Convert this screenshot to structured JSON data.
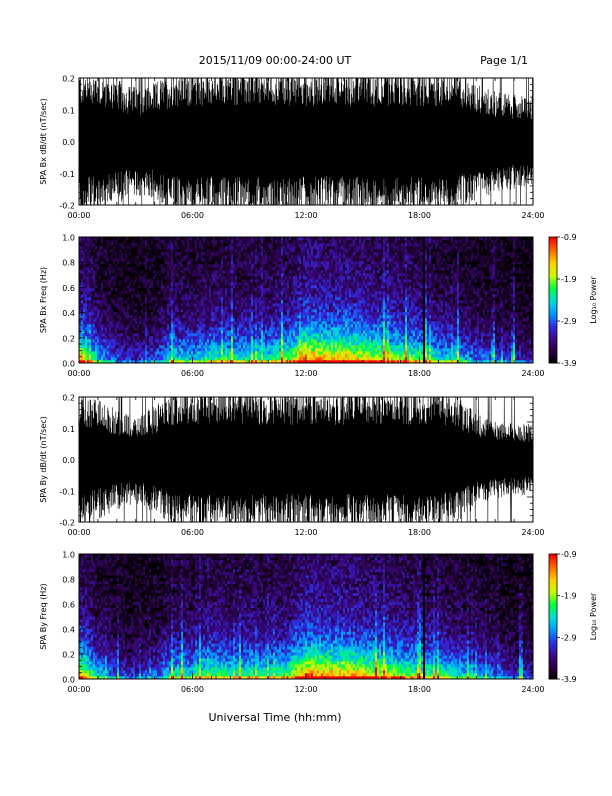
{
  "header": {
    "title": "2015/11/09  00:00-24:00 UT",
    "page": "Page 1/1"
  },
  "footer": {
    "xlabel": "Universal Time (hh:mm)"
  },
  "colors": {
    "trace": "#000000",
    "background": "#ffffff",
    "colormap": [
      "#000000",
      "#2a0040",
      "#3a0a8a",
      "#2e2ee6",
      "#0099ff",
      "#00e0d0",
      "#00ff40",
      "#c8ff00",
      "#ffd000",
      "#ff6a00",
      "#ff0000"
    ]
  },
  "chart_data": [
    {
      "type": "line",
      "ylabel": "SPA Bx dB/dt (nT/sec)",
      "xlim": [
        0,
        24
      ],
      "ylim": [
        -0.2,
        0.2
      ],
      "xticks": [
        "00:00",
        "06:00",
        "12:00",
        "18:00",
        "24:00"
      ],
      "yticks": [
        "-0.2",
        "-0.1",
        "0.0",
        "0.1",
        "0.2"
      ],
      "ytick_values": [
        -0.2,
        -0.1,
        0.0,
        0.1,
        0.2
      ],
      "envelope_hours": [
        0,
        1,
        2,
        3,
        4,
        5,
        6,
        7,
        8,
        9,
        10,
        11,
        12,
        13,
        14,
        15,
        16,
        17,
        18,
        19,
        20,
        21,
        22,
        23,
        24
      ],
      "envelope_amplitude": [
        0.2,
        0.2,
        0.17,
        0.15,
        0.16,
        0.2,
        0.2,
        0.2,
        0.2,
        0.2,
        0.2,
        0.2,
        0.2,
        0.2,
        0.2,
        0.2,
        0.2,
        0.2,
        0.2,
        0.2,
        0.2,
        0.16,
        0.14,
        0.13,
        0.12
      ]
    },
    {
      "type": "heatmap",
      "ylabel": "SPA Bx Freq (Hz)",
      "xlim": [
        0,
        24
      ],
      "ylim": [
        0,
        1.0
      ],
      "xticks": [
        "00:00",
        "06:00",
        "12:00",
        "18:00",
        "24:00"
      ],
      "yticks": [
        "0.0",
        "0.2",
        "0.4",
        "0.6",
        "0.8",
        "1.0"
      ],
      "ytick_values": [
        0.0,
        0.2,
        0.4,
        0.6,
        0.8,
        1.0
      ],
      "colorbar_label": "Log₁₀ Power",
      "colorbar_ticks": [
        "-0.9",
        "-1.9",
        "-2.9",
        "-3.9"
      ],
      "colorbar_tick_values": [
        -0.9,
        -1.9,
        -2.9,
        -3.9
      ],
      "zlim": [
        -3.9,
        -0.9
      ],
      "activity_hours": [
        0,
        1,
        2,
        3,
        4,
        5,
        6,
        7,
        8,
        9,
        10,
        11,
        12,
        13,
        14,
        15,
        16,
        17,
        18,
        19,
        20,
        21,
        22,
        23,
        24
      ],
      "activity_level": [
        0.85,
        0.5,
        0.35,
        0.3,
        0.35,
        0.55,
        0.5,
        0.6,
        0.6,
        0.55,
        0.6,
        0.65,
        0.9,
        0.85,
        0.85,
        0.8,
        0.75,
        0.7,
        0.65,
        0.55,
        0.5,
        0.4,
        0.35,
        0.3,
        0.25
      ],
      "gap_hour": 18.2
    },
    {
      "type": "line",
      "ylabel": "SPA By dB/dt (nT/sec)",
      "xlim": [
        0,
        24
      ],
      "ylim": [
        -0.2,
        0.2
      ],
      "xticks": [
        "00:00",
        "06:00",
        "12:00",
        "18:00",
        "24:00"
      ],
      "yticks": [
        "-0.2",
        "-0.1",
        "0.0",
        "0.1",
        "0.2"
      ],
      "ytick_values": [
        -0.2,
        -0.1,
        0.0,
        0.1,
        0.2
      ],
      "envelope_hours": [
        0,
        1,
        2,
        3,
        4,
        5,
        6,
        7,
        8,
        9,
        10,
        11,
        12,
        13,
        14,
        15,
        16,
        17,
        18,
        19,
        20,
        21,
        22,
        23,
        24
      ],
      "envelope_amplitude": [
        0.2,
        0.17,
        0.14,
        0.12,
        0.15,
        0.2,
        0.2,
        0.2,
        0.2,
        0.2,
        0.2,
        0.2,
        0.2,
        0.2,
        0.2,
        0.2,
        0.2,
        0.2,
        0.2,
        0.2,
        0.18,
        0.13,
        0.11,
        0.1,
        0.1
      ]
    },
    {
      "type": "heatmap",
      "ylabel": "SPA By Freq (Hz)",
      "xlim": [
        0,
        24
      ],
      "ylim": [
        0,
        1.0
      ],
      "xticks": [
        "00:00",
        "06:00",
        "12:00",
        "18:00",
        "24:00"
      ],
      "yticks": [
        "0.0",
        "0.2",
        "0.4",
        "0.6",
        "0.8",
        "1.0"
      ],
      "ytick_values": [
        0.0,
        0.2,
        0.4,
        0.6,
        0.8,
        1.0
      ],
      "colorbar_label": "Log₁₀ Power",
      "colorbar_ticks": [
        "-0.9",
        "-1.9",
        "-2.9",
        "-3.9"
      ],
      "colorbar_tick_values": [
        -0.9,
        -1.9,
        -2.9,
        -3.9
      ],
      "zlim": [
        -3.9,
        -0.9
      ],
      "activity_hours": [
        0,
        1,
        2,
        3,
        4,
        5,
        6,
        7,
        8,
        9,
        10,
        11,
        12,
        13,
        14,
        15,
        16,
        17,
        18,
        19,
        20,
        21,
        22,
        23,
        24
      ],
      "activity_level": [
        0.85,
        0.5,
        0.35,
        0.3,
        0.35,
        0.55,
        0.55,
        0.65,
        0.6,
        0.6,
        0.6,
        0.65,
        0.9,
        0.85,
        0.85,
        0.8,
        0.75,
        0.7,
        0.65,
        0.6,
        0.55,
        0.45,
        0.4,
        0.3,
        0.3
      ],
      "gap_hour": 18.2
    }
  ]
}
